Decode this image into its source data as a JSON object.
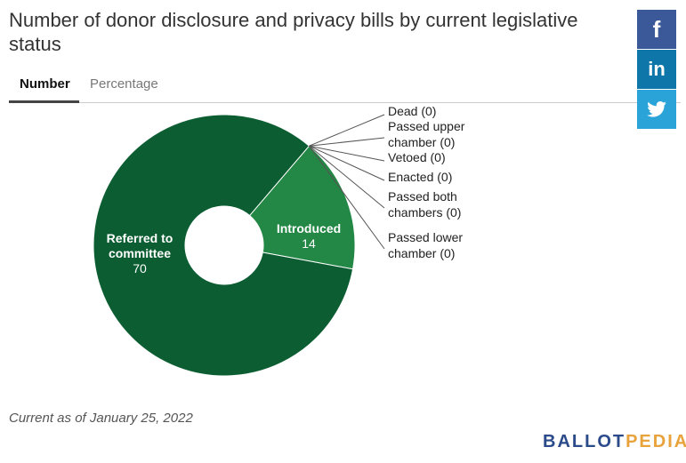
{
  "title": "Number of donor disclosure and privacy bills by current legislative status",
  "tabs": [
    {
      "label": "Number",
      "active": true
    },
    {
      "label": "Percentage",
      "active": false
    }
  ],
  "share": {
    "facebook_label": "f",
    "linkedin_label": "in",
    "twitter_icon": "twitter-bird-icon"
  },
  "chart_data": {
    "type": "pie",
    "donut": true,
    "title": "Number of donor disclosure and privacy bills by current legislative status",
    "slices": [
      {
        "label": "Dead",
        "value": 0,
        "display": "Dead (0)",
        "color": "#1f6b3a"
      },
      {
        "label": "Passed upper chamber",
        "value": 0,
        "display_lines": [
          "Passed upper",
          "chamber (0)"
        ],
        "color": "#1f6b3a"
      },
      {
        "label": "Vetoed",
        "value": 0,
        "display": "Vetoed (0)",
        "color": "#1f6b3a"
      },
      {
        "label": "Enacted",
        "value": 0,
        "display": "Enacted (0)",
        "color": "#1f6b3a"
      },
      {
        "label": "Passed both chambers",
        "value": 0,
        "display_lines": [
          "Passed both",
          "chambers (0)"
        ],
        "color": "#1f6b3a"
      },
      {
        "label": "Introduced",
        "value": 14,
        "display_lines": [
          "Introduced",
          "14"
        ],
        "color": "#238745"
      },
      {
        "label": "Passed lower chamber",
        "value": 0,
        "display_lines": [
          "Passed lower",
          "chamber (0)"
        ],
        "color": "#1f6b3a"
      },
      {
        "label": "Referred to committee",
        "value": 70,
        "display_lines": [
          "Referred to",
          "committee",
          "70"
        ],
        "color": "#0c5e32"
      }
    ]
  },
  "footnote": "Current as of January 25, 2022",
  "logo": {
    "part1": "BALLOT",
    "part2": "PEDIA"
  },
  "colors": {
    "tab_active": "#444444",
    "facebook": "#3b5998",
    "linkedin": "#0e76a8",
    "twitter": "#2aa3d8"
  }
}
